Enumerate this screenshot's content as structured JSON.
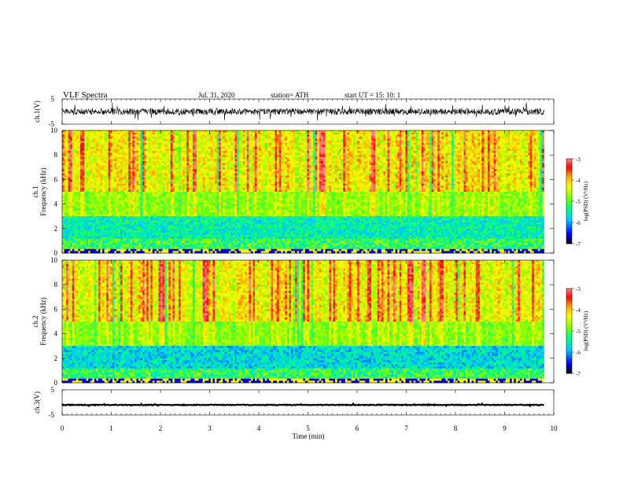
{
  "header": {
    "title": "VLF  Spectra",
    "date": "Jul.  31, 2020",
    "station": "station= ATH",
    "start_ut": "start  UT  =    15: 10: 1"
  },
  "chart_data": [
    {
      "type": "line",
      "name": "ch1-waveform",
      "ylabel": "ch.1(V)",
      "xlim": [
        0,
        10
      ],
      "ylim": [
        -5,
        5
      ],
      "yticks": [
        "5",
        "-5"
      ],
      "trace_level_v": 0,
      "trace_spread_v": 2.5
    },
    {
      "type": "heatmap",
      "name": "ch1-spectrogram",
      "ylabel": "ch.1\nFrequency  (kHz)",
      "xlim": [
        0,
        10
      ],
      "ylim": [
        0,
        10
      ],
      "yticks": [
        "0",
        "2",
        "4",
        "6",
        "8",
        "10"
      ],
      "colorbar": {
        "label": "log(PSD) (V²/Hz)",
        "range": [
          -7,
          -3
        ],
        "ticks": [
          "-3",
          "-4",
          "-5",
          "-6",
          "-7"
        ],
        "colors": [
          "#000000",
          "#0000ff",
          "#00c8ff",
          "#00ff80",
          "#80ff00",
          "#ffff00",
          "#ffa000",
          "#ff0000",
          "#ff8080",
          "#ffffff"
        ]
      }
    },
    {
      "type": "heatmap",
      "name": "ch2-spectrogram",
      "ylabel": "ch.2\nFrequency  (kHz)",
      "xlim": [
        0,
        10
      ],
      "ylim": [
        0,
        10
      ],
      "yticks": [
        "0",
        "2",
        "4",
        "6",
        "8",
        "10"
      ],
      "colorbar": {
        "label": "log(PSD) (V²/Hz)",
        "range": [
          -7,
          -3
        ],
        "ticks": [
          "-3",
          "-4",
          "-5",
          "-6",
          "-7"
        ],
        "colors": [
          "#000000",
          "#0000ff",
          "#00c8ff",
          "#00ff80",
          "#80ff00",
          "#ffff00",
          "#ffa000",
          "#ff0000",
          "#ff8080",
          "#ffffff"
        ]
      }
    },
    {
      "type": "line",
      "name": "ch3-waveform",
      "ylabel": "ch.3(V)",
      "xlim": [
        0,
        10
      ],
      "ylim": [
        -5,
        5
      ],
      "yticks": [
        "5",
        "-5"
      ],
      "trace_level_v": -1,
      "trace_spread_v": 0.3
    }
  ],
  "xaxis": {
    "label": "Time  (min)",
    "ticks": [
      "0",
      "1",
      "2",
      "3",
      "4",
      "5",
      "6",
      "7",
      "8",
      "9",
      "10"
    ],
    "data_end_min": 9.8
  }
}
